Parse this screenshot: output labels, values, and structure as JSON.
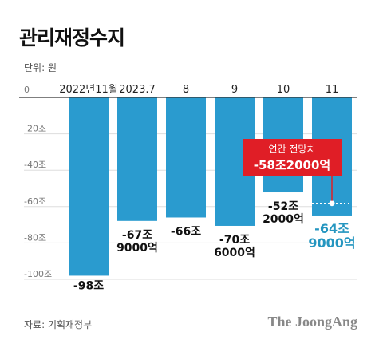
{
  "header": {
    "title": "관리재정수지",
    "unit": "단위: 원"
  },
  "footer": {
    "source": "자료: 기획재정부",
    "brand": "The JoongAng"
  },
  "colors": {
    "bar": "#2a9bcf",
    "axis": "#333333",
    "grid": "#dddddd",
    "callout": "#e01e26",
    "highlight_text": "#2596c0"
  },
  "chart_data": {
    "type": "bar",
    "title": "관리재정수지",
    "unit": "단위: 원",
    "categories": [
      "2022년11월",
      "2023.7",
      "8",
      "9",
      "10",
      "11"
    ],
    "values": [
      -98,
      -67.9,
      -66,
      -70.6,
      -52.2,
      -64.9
    ],
    "value_labels": [
      [
        "-98조"
      ],
      [
        "-67조",
        "9000억"
      ],
      [
        "-66조"
      ],
      [
        "-70조",
        "6000억"
      ],
      [
        "-52조",
        "2000억"
      ],
      [
        "-64조",
        "9000억"
      ]
    ],
    "highlight_index": 5,
    "yticks": [
      0,
      -20,
      -40,
      -60,
      -80,
      -100
    ],
    "ytick_labels": [
      "0",
      "-20조",
      "-40조",
      "-60조",
      "-80조",
      "-100조"
    ],
    "ylim": [
      -105,
      0
    ],
    "annotation": {
      "line1": "연간 전망치",
      "line2": "-58조2000억",
      "value": -58.2
    },
    "grid": true,
    "xaxis_position": "top"
  }
}
